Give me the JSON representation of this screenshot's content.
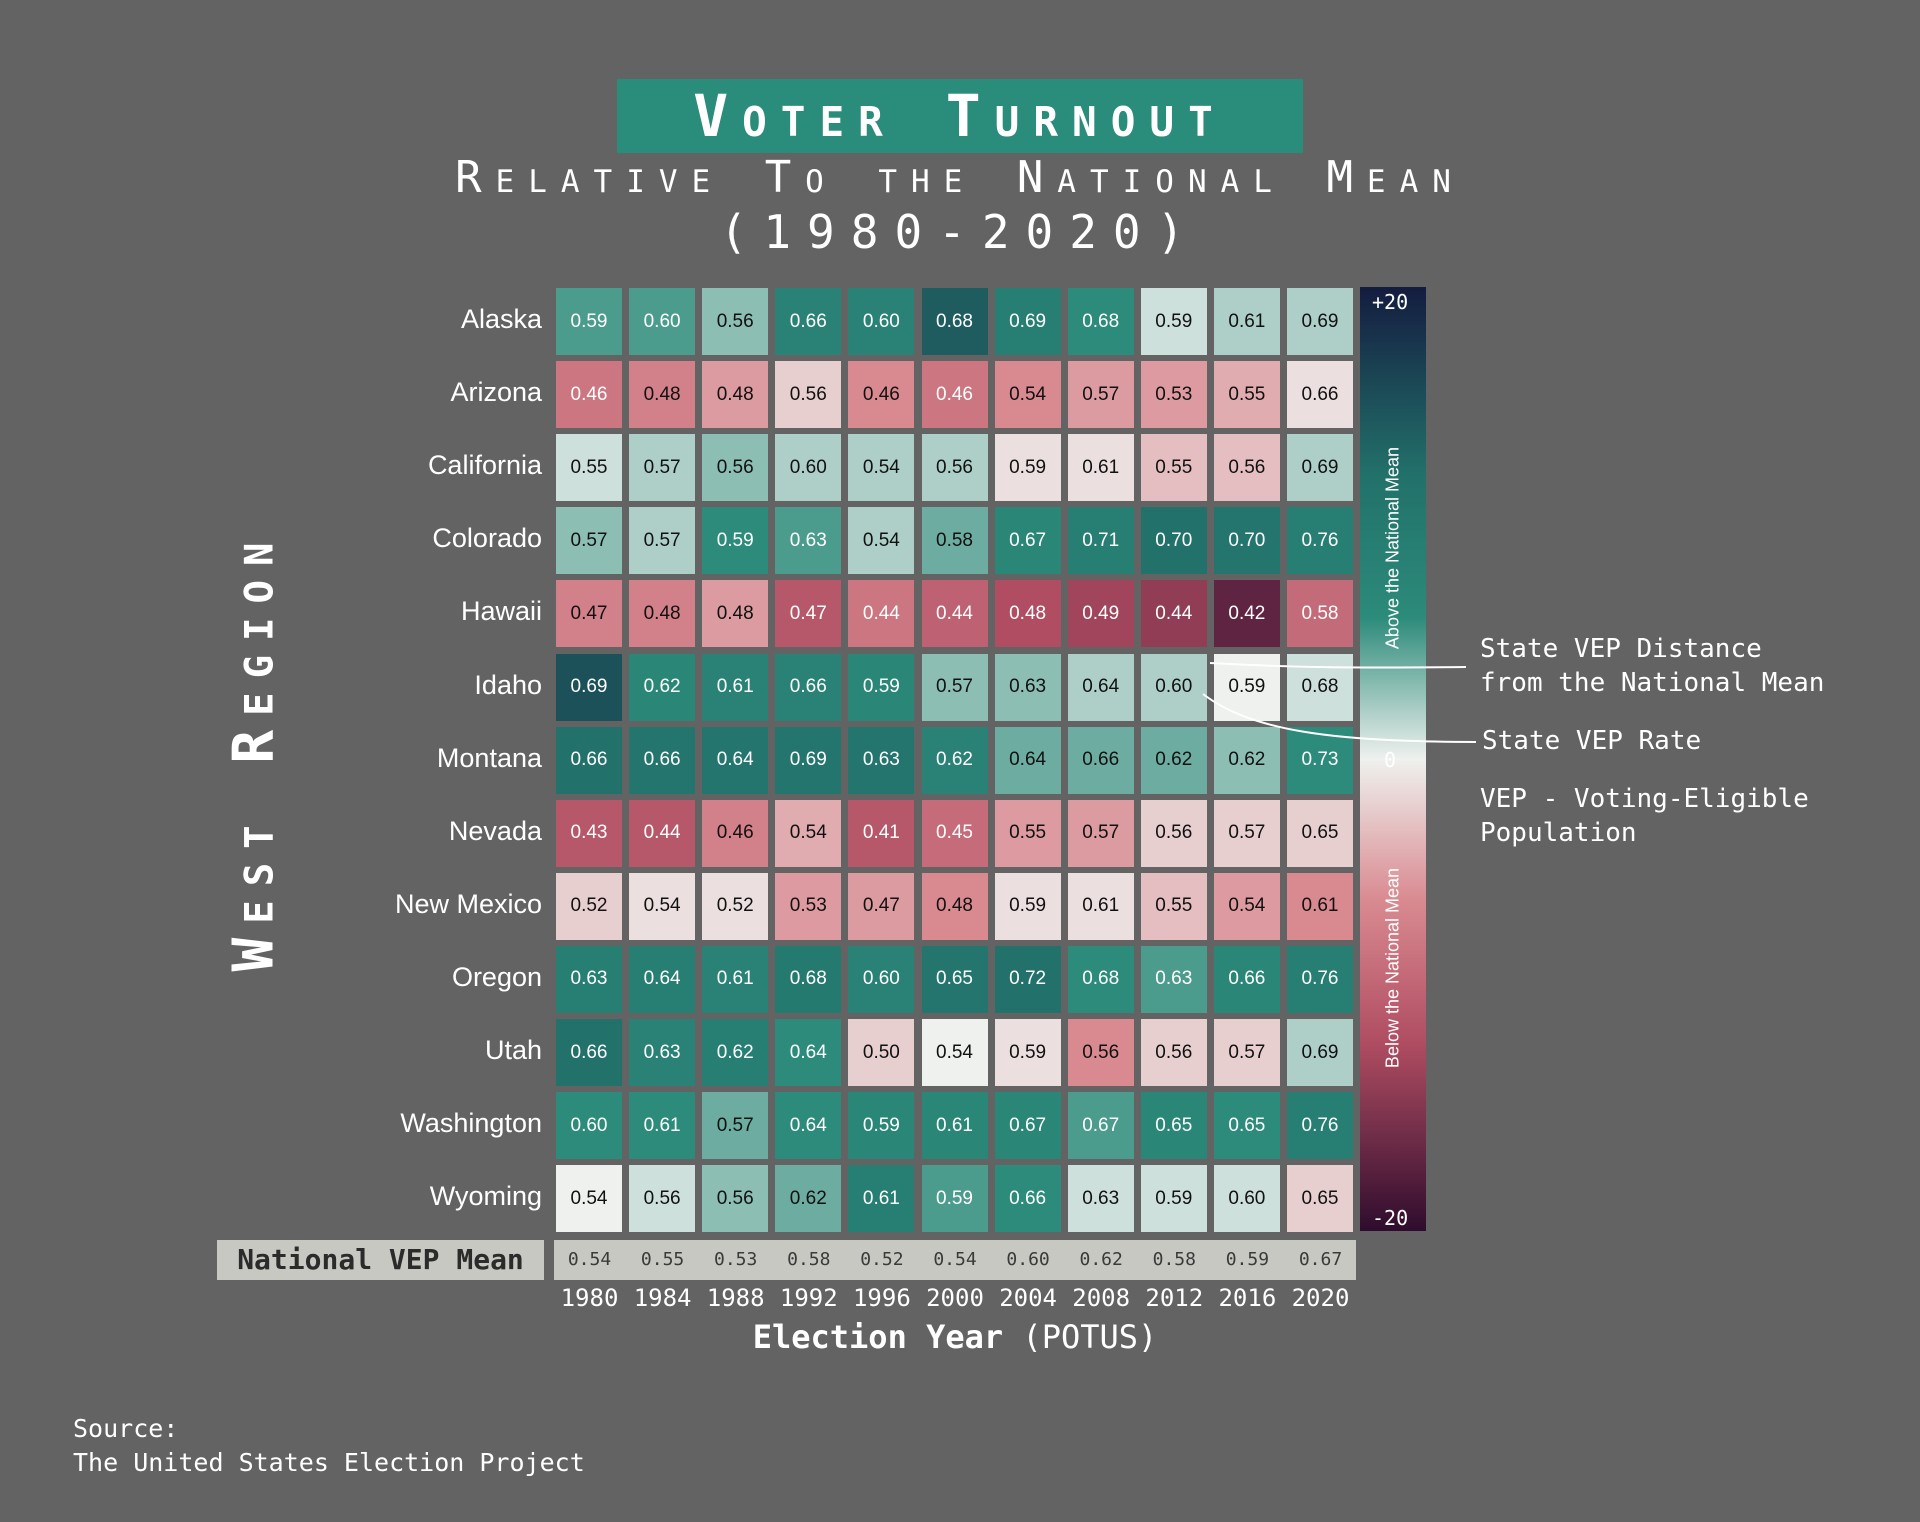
{
  "header": {
    "title": "Voter Turnout",
    "subtitle": "Relative To the National Mean",
    "years_range": "(1980-2020)"
  },
  "region_label": "West Region",
  "legend": {
    "distance_text": "State VEP Distance\nfrom the National Mean",
    "rate_text": "State VEP Rate",
    "vep_text": "VEP - Voting-Eligible\nPopulation"
  },
  "colorbar": {
    "max_label": "+20",
    "mid_label": "0",
    "min_label": "-20",
    "above_label": "Above the National Mean",
    "below_label": "Below the National Mean",
    "colors": {
      "high": "#141c40",
      "upper": "#22716a",
      "mid_high": "#2c8b7a",
      "center": "#eef1ee",
      "mid_low": "#d98a91",
      "low_mid": "#b04d62",
      "low": "#2f0c2d"
    }
  },
  "national_mean_label": "National VEP Mean",
  "x_axis_label_bold": "Election Year",
  "x_axis_label_rest": " (POTUS)",
  "source": {
    "label": "Source:",
    "text": "The United States Election Project"
  },
  "chart_data": {
    "type": "heatmap",
    "x": [
      "1980",
      "1984",
      "1988",
      "1992",
      "1996",
      "2000",
      "2004",
      "2008",
      "2012",
      "2016",
      "2020"
    ],
    "y": [
      "Alaska",
      "Arizona",
      "California",
      "Colorado",
      "Hawaii",
      "Idaho",
      "Montana",
      "Nevada",
      "New Mexico",
      "Oregon",
      "Utah",
      "Washington",
      "Wyoming"
    ],
    "values": [
      [
        "0.59",
        "0.60",
        "0.56",
        "0.66",
        "0.60",
        "0.68",
        "0.69",
        "0.68",
        "0.59",
        "0.61",
        "0.69"
      ],
      [
        "0.46",
        "0.48",
        "0.48",
        "0.56",
        "0.46",
        "0.46",
        "0.54",
        "0.57",
        "0.53",
        "0.55",
        "0.66"
      ],
      [
        "0.55",
        "0.57",
        "0.56",
        "0.60",
        "0.54",
        "0.56",
        "0.59",
        "0.61",
        "0.55",
        "0.56",
        "0.69"
      ],
      [
        "0.57",
        "0.57",
        "0.59",
        "0.63",
        "0.54",
        "0.58",
        "0.67",
        "0.71",
        "0.70",
        "0.70",
        "0.76"
      ],
      [
        "0.47",
        "0.48",
        "0.48",
        "0.47",
        "0.44",
        "0.44",
        "0.48",
        "0.49",
        "0.44",
        "0.42",
        "0.58"
      ],
      [
        "0.69",
        "0.62",
        "0.61",
        "0.66",
        "0.59",
        "0.57",
        "0.63",
        "0.64",
        "0.60",
        "0.59",
        "0.68"
      ],
      [
        "0.66",
        "0.66",
        "0.64",
        "0.69",
        "0.63",
        "0.62",
        "0.64",
        "0.66",
        "0.62",
        "0.62",
        "0.73"
      ],
      [
        "0.43",
        "0.44",
        "0.46",
        "0.54",
        "0.41",
        "0.45",
        "0.55",
        "0.57",
        "0.56",
        "0.57",
        "0.65"
      ],
      [
        "0.52",
        "0.54",
        "0.52",
        "0.53",
        "0.47",
        "0.48",
        "0.59",
        "0.61",
        "0.55",
        "0.54",
        "0.61"
      ],
      [
        "0.63",
        "0.64",
        "0.61",
        "0.68",
        "0.60",
        "0.65",
        "0.72",
        "0.68",
        "0.63",
        "0.66",
        "0.76"
      ],
      [
        "0.66",
        "0.63",
        "0.62",
        "0.64",
        "0.50",
        "0.54",
        "0.59",
        "0.56",
        "0.56",
        "0.57",
        "0.69"
      ],
      [
        "0.60",
        "0.61",
        "0.57",
        "0.64",
        "0.59",
        "0.61",
        "0.67",
        "0.67",
        "0.65",
        "0.65",
        "0.76"
      ],
      [
        "0.54",
        "0.56",
        "0.56",
        "0.62",
        "0.61",
        "0.59",
        "0.66",
        "0.63",
        "0.59",
        "0.60",
        "0.65"
      ]
    ],
    "national_mean": [
      "0.54",
      "0.55",
      "0.53",
      "0.58",
      "0.52",
      "0.54",
      "0.60",
      "0.62",
      "0.58",
      "0.59",
      "0.67"
    ],
    "color_range": [
      -20,
      20
    ]
  }
}
